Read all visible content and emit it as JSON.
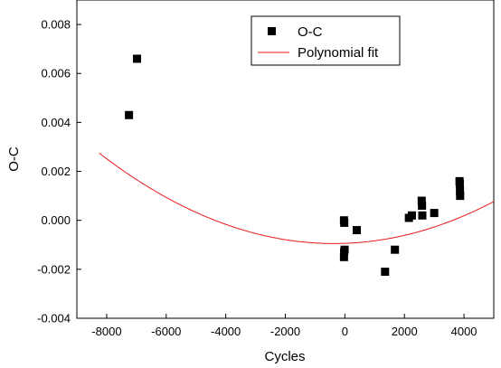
{
  "chart_data": {
    "type": "scatter",
    "title": "",
    "xlabel": "Cycles",
    "ylabel": "O-C",
    "xlim": [
      -9000,
      5000
    ],
    "ylim": [
      -0.004,
      0.009
    ],
    "x_ticks": [
      -8000,
      -6000,
      -4000,
      -2000,
      0,
      2000,
      4000
    ],
    "x_tick_labels": [
      "-8000",
      "-6000",
      "-4000",
      "-2000",
      "0",
      "2000",
      "4000"
    ],
    "y_ticks": [
      -0.004,
      -0.002,
      0.0,
      0.002,
      0.004,
      0.006,
      0.008
    ],
    "y_tick_labels": [
      "-0.004",
      "-0.002",
      "0.000",
      "0.002",
      "0.004",
      "0.006",
      "0.008"
    ],
    "grid": false,
    "legend_position": "top-center",
    "legend": [
      "O-C",
      "Polynomial fit"
    ],
    "series": [
      {
        "name": "O-C",
        "kind": "scatter",
        "marker": "square",
        "color": "#000000",
        "points": [
          {
            "x": -7250,
            "y": 0.0043
          },
          {
            "x": -6980,
            "y": 0.0066
          },
          {
            "x": -30,
            "y": 0.0
          },
          {
            "x": -20,
            "y": -0.0001
          },
          {
            "x": -10,
            "y": -0.0012
          },
          {
            "x": -25,
            "y": -0.0013
          },
          {
            "x": -30,
            "y": -0.0015
          },
          {
            "x": 400,
            "y": -0.0004
          },
          {
            "x": 1350,
            "y": -0.0021
          },
          {
            "x": 1680,
            "y": -0.0012
          },
          {
            "x": 2150,
            "y": 0.0001
          },
          {
            "x": 2250,
            "y": 0.0002
          },
          {
            "x": 2580,
            "y": 0.0008
          },
          {
            "x": 2590,
            "y": 0.0006
          },
          {
            "x": 2600,
            "y": 0.0002
          },
          {
            "x": 3000,
            "y": 0.0003
          },
          {
            "x": 3850,
            "y": 0.0016
          },
          {
            "x": 3860,
            "y": 0.0015
          },
          {
            "x": 3865,
            "y": 0.0012
          },
          {
            "x": 3870,
            "y": 0.001
          }
        ]
      },
      {
        "name": "Polynomial fit",
        "kind": "line",
        "color": "#e8191c",
        "equation": {
          "type": "quadratic",
          "a": 5.95e-11,
          "b": 4.4e-08,
          "c": -0.00094
        },
        "x_range": [
          -8250,
          5000
        ]
      }
    ]
  }
}
